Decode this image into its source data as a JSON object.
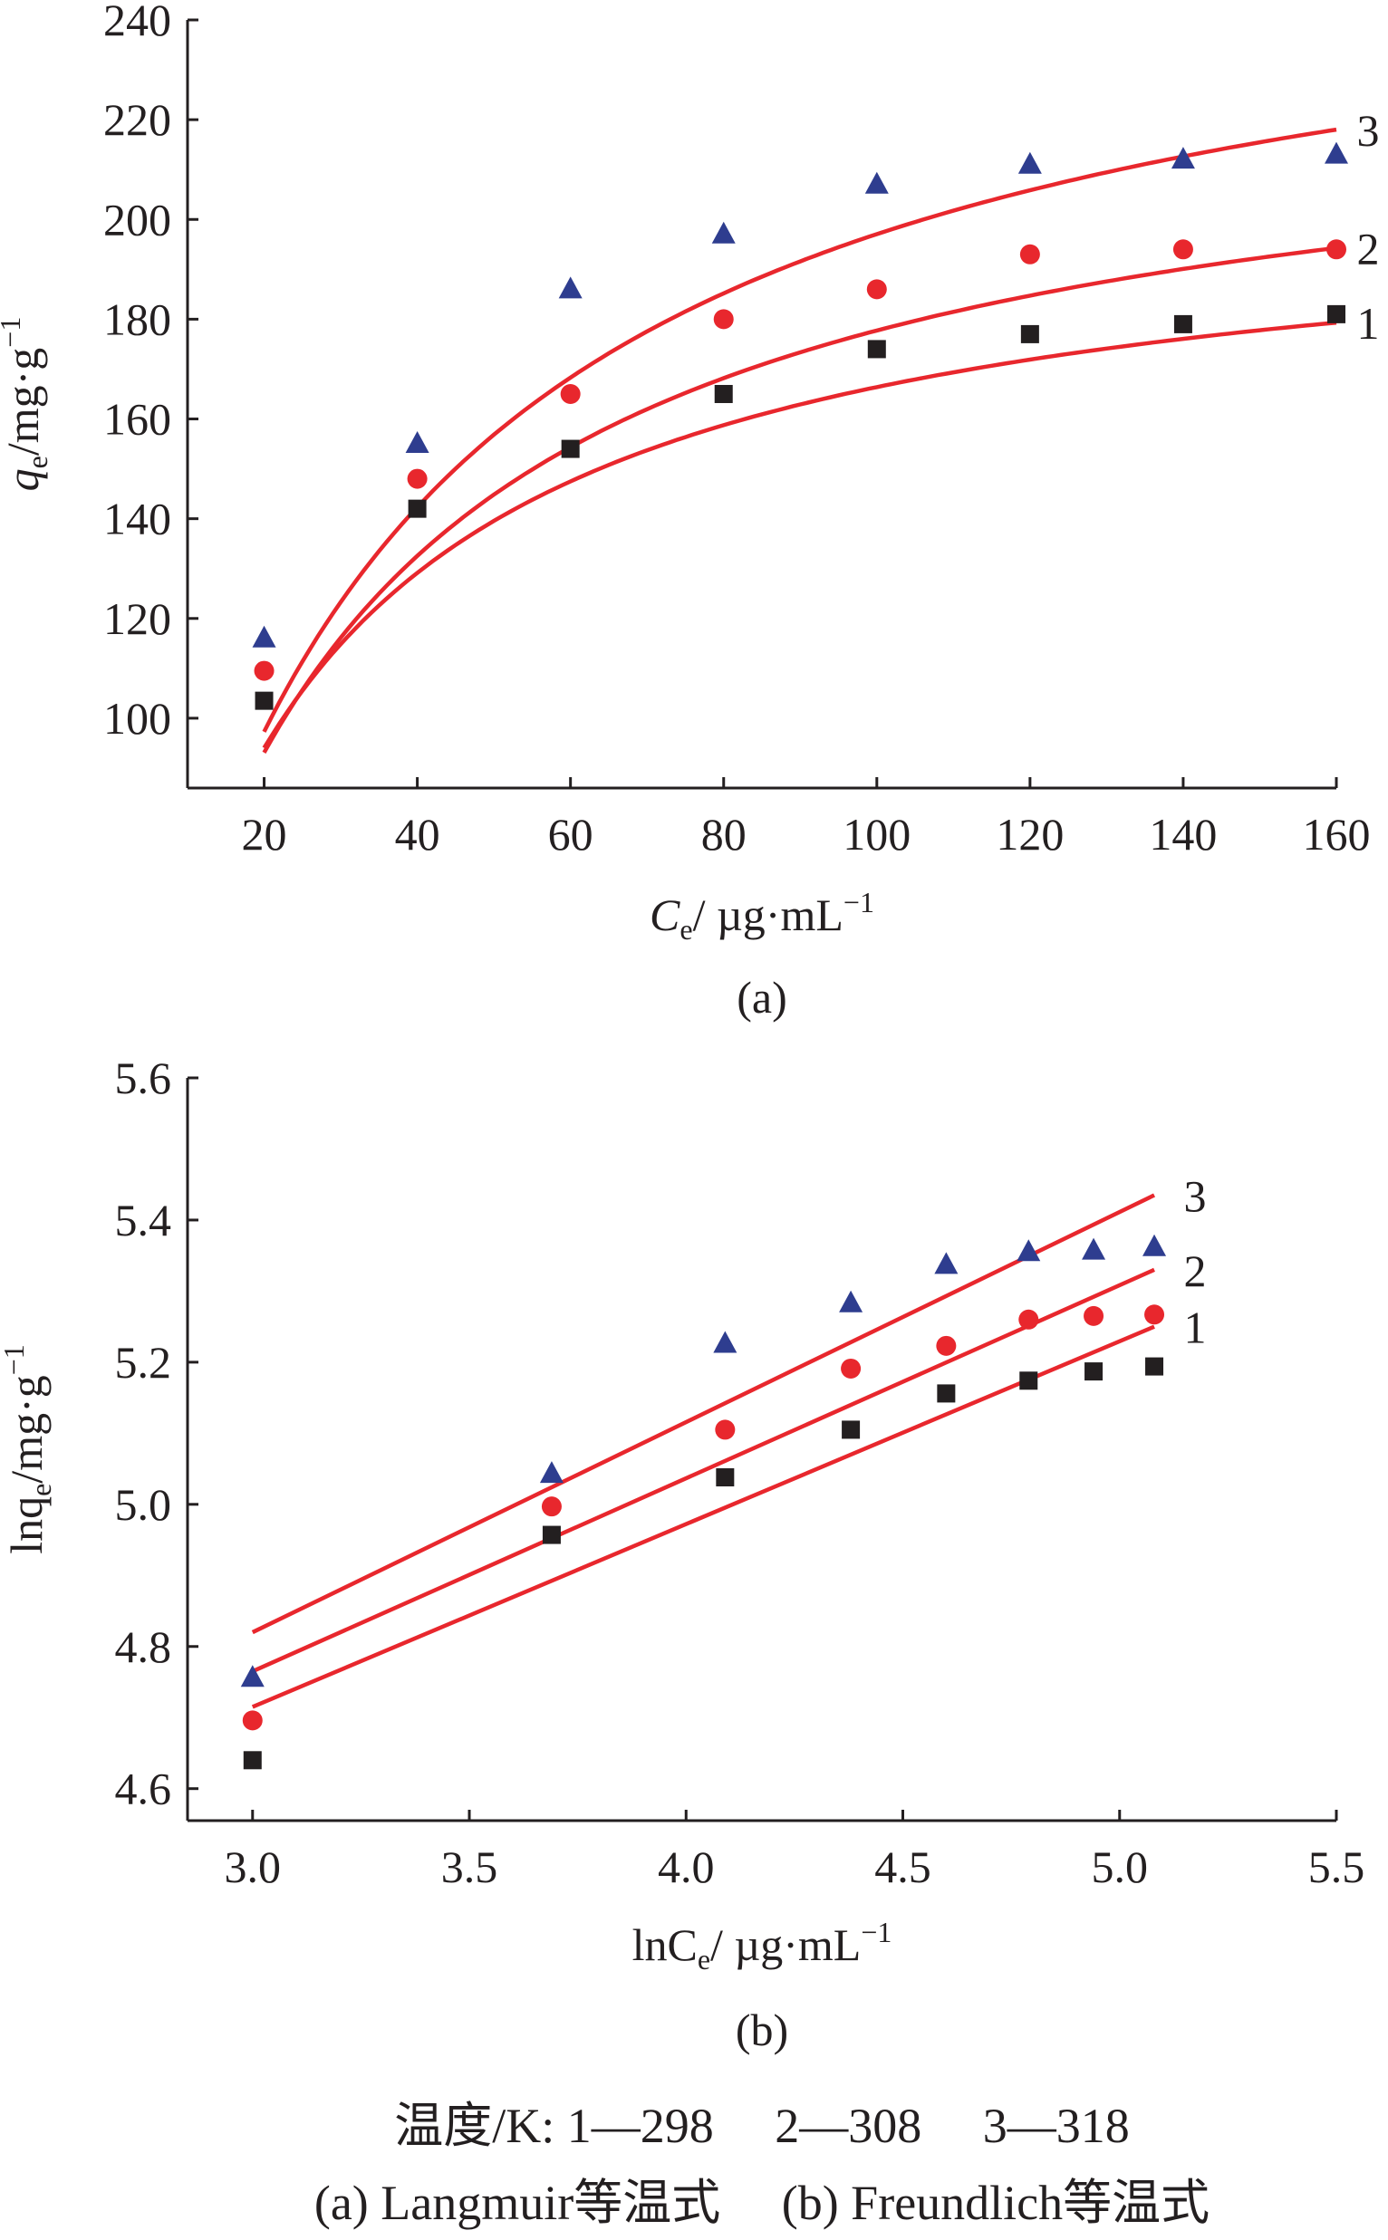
{
  "chart_data": [
    {
      "type": "scatter",
      "panel_label": "(a)",
      "ylabel_main": "q",
      "ylabel_sub": "e",
      "ylabel_unit_a": "/mg·g",
      "ylabel_unit_sup": "−1",
      "xlabel_main": "C",
      "xlabel_sub": "e",
      "xlabel_unit_a": "/ µg·mL",
      "xlabel_unit_sup": "−1",
      "xlim": [
        10,
        160
      ],
      "ylim": [
        86,
        240
      ],
      "xticks": [
        20,
        40,
        60,
        80,
        100,
        120,
        140,
        160
      ],
      "yticks": [
        100,
        120,
        140,
        160,
        180,
        200,
        220,
        240
      ],
      "x": [
        20,
        40,
        60,
        80,
        100,
        120,
        140,
        160
      ],
      "series": [
        {
          "name": "1",
          "marker": "square",
          "color": "#231f20",
          "values": [
            103.5,
            142,
            154,
            165,
            174,
            177,
            179,
            181
          ],
          "fit": {
            "model": "langmuir",
            "qmax": 206,
            "KL": 0.042
          }
        },
        {
          "name": "2",
          "marker": "circle",
          "color": "#e8272d",
          "values": [
            109.5,
            148,
            165,
            180,
            186,
            193,
            194,
            194
          ],
          "fit": {
            "model": "langmuir",
            "qmax": 230,
            "KL": 0.034
          }
        },
        {
          "name": "3",
          "marker": "triangle",
          "color": "#2e3d8f",
          "values": [
            116,
            155,
            186,
            197,
            207,
            211,
            212,
            213
          ],
          "fit": {
            "model": "langmuir",
            "qmax": 265,
            "KL": 0.029
          }
        }
      ]
    },
    {
      "type": "scatter",
      "panel_label": "(b)",
      "ylabel_main": "lnq",
      "ylabel_sub": "e",
      "ylabel_unit_a": "/mg·g",
      "ylabel_unit_sup": "−1",
      "xlabel_main": "lnC",
      "xlabel_sub": "e",
      "xlabel_unit_a": "/ µg·mL",
      "xlabel_unit_sup": "−1",
      "xlim": [
        2.85,
        5.5
      ],
      "ylim": [
        4.555,
        5.6
      ],
      "xticks": [
        "3.0",
        "3.5",
        "4.0",
        "4.5",
        "5.0",
        "5.5"
      ],
      "yticks": [
        "4.6",
        "4.8",
        "5.0",
        "5.2",
        "5.4",
        "5.6"
      ],
      "x": [
        3.0,
        3.69,
        4.09,
        4.38,
        4.6,
        4.79,
        4.94,
        5.08
      ],
      "series": [
        {
          "name": "1",
          "marker": "square",
          "color": "#231f20",
          "values": [
            4.64,
            4.957,
            5.038,
            5.105,
            5.156,
            5.174,
            5.187,
            5.194
          ],
          "fit": {
            "model": "linear",
            "x0": 3.0,
            "y0": 4.715,
            "x1": 5.08,
            "y1": 5.25
          }
        },
        {
          "name": "2",
          "marker": "circle",
          "color": "#e8272d",
          "values": [
            4.696,
            4.997,
            5.105,
            5.191,
            5.223,
            5.26,
            5.265,
            5.267
          ],
          "fit": {
            "model": "linear",
            "x0": 3.0,
            "y0": 4.765,
            "x1": 5.08,
            "y1": 5.33
          }
        },
        {
          "name": "3",
          "marker": "triangle",
          "color": "#2e3d8f",
          "values": [
            4.756,
            5.043,
            5.226,
            5.283,
            5.337,
            5.355,
            5.357,
            5.362
          ],
          "fit": {
            "model": "linear",
            "x0": 3.0,
            "y0": 4.82,
            "x1": 5.08,
            "y1": 5.435
          }
        }
      ]
    }
  ],
  "caption": {
    "line1": "温度/K: 1—298  2—308  3—318",
    "line2": "(a) Langmuir等温式  (b) Freundlich等温式"
  }
}
